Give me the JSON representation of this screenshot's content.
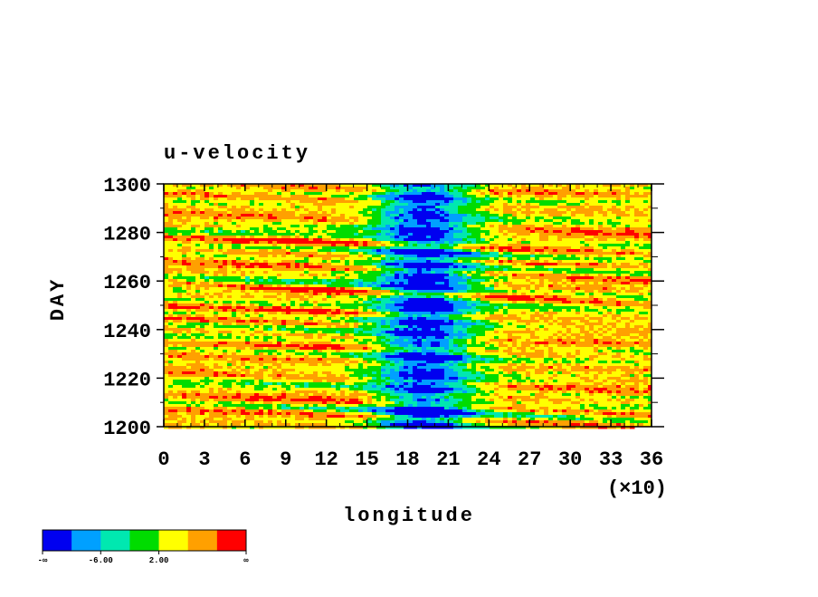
{
  "chart_data": {
    "type": "contour",
    "title": "u-velocity",
    "x_label": "longitude",
    "x_multiplier": "(×10)",
    "y_label": "DAY",
    "xlim": [
      0,
      36
    ],
    "xticks": [
      0,
      3,
      6,
      9,
      12,
      15,
      18,
      21,
      24,
      27,
      30,
      33,
      36
    ],
    "ylim": [
      1200,
      1300
    ],
    "yticks": [
      1200,
      1220,
      1240,
      1260,
      1280,
      1300
    ],
    "colorbar": {
      "colors": [
        "#0000f0",
        "#00a0ff",
        "#00e8b0",
        "#00dc00",
        "#ffff00",
        "#ffa000",
        "#ff0000"
      ],
      "labels": [
        "-∞",
        "-6.00",
        "2.00",
        "∞"
      ]
    }
  }
}
